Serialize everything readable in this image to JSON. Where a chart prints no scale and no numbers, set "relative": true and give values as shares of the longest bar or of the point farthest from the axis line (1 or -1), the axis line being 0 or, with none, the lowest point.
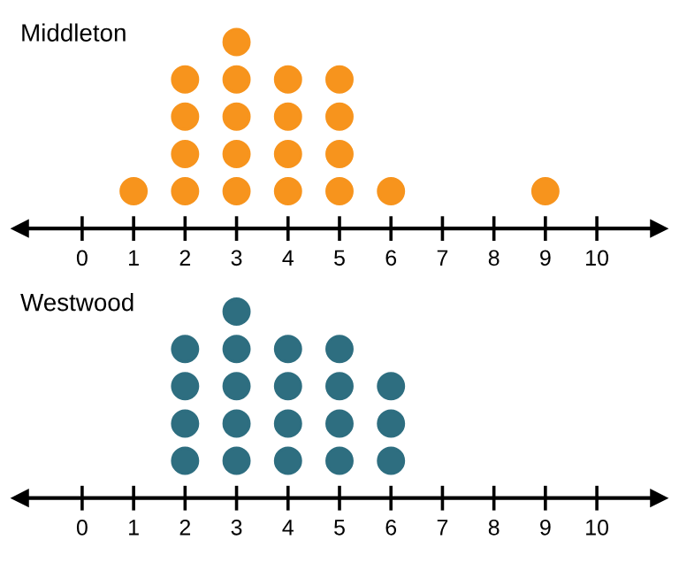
{
  "chart_data": [
    {
      "type": "scatter",
      "title": "Middleton",
      "color": "#f7941d",
      "marker": "circle",
      "tick_labels": "x",
      "grid": false,
      "relative": true,
      "x": [
        1,
        2,
        2,
        2,
        2,
        3,
        3,
        3,
        3,
        3,
        4,
        4,
        4,
        4,
        5,
        5,
        5,
        5,
        6,
        9
      ],
      "values": [
        0.2,
        0.2,
        0.4,
        0.6,
        0.8,
        0.2,
        0.4,
        0.6,
        0.8,
        1,
        0.2,
        0.4,
        0.6,
        0.8,
        0.2,
        0.4,
        0.6,
        0.8,
        0.2,
        0.2
      ],
      "xlim": [
        -1.2,
        11.2
      ],
      "xticks": [
        0,
        1,
        2,
        3,
        4,
        5,
        6,
        7,
        8,
        9,
        10
      ]
    },
    {
      "type": "scatter",
      "title": "Westwood",
      "color": "#2e6e80",
      "marker": "circle",
      "tick_labels": "x",
      "grid": false,
      "relative": true,
      "x": [
        2,
        2,
        2,
        2,
        3,
        3,
        3,
        3,
        3,
        4,
        4,
        4,
        4,
        5,
        5,
        5,
        5,
        6,
        6,
        6
      ],
      "values": [
        0.2,
        0.4,
        0.6,
        0.8,
        0.2,
        0.4,
        0.6,
        0.8,
        1,
        0.2,
        0.4,
        0.6,
        0.8,
        0.2,
        0.4,
        0.6,
        0.8,
        0.2,
        0.4,
        0.6
      ],
      "xlim": [
        -1.2,
        11.2
      ],
      "xticks": [
        0,
        1,
        2,
        3,
        4,
        5,
        6,
        7,
        8,
        9,
        10
      ]
    }
  ]
}
